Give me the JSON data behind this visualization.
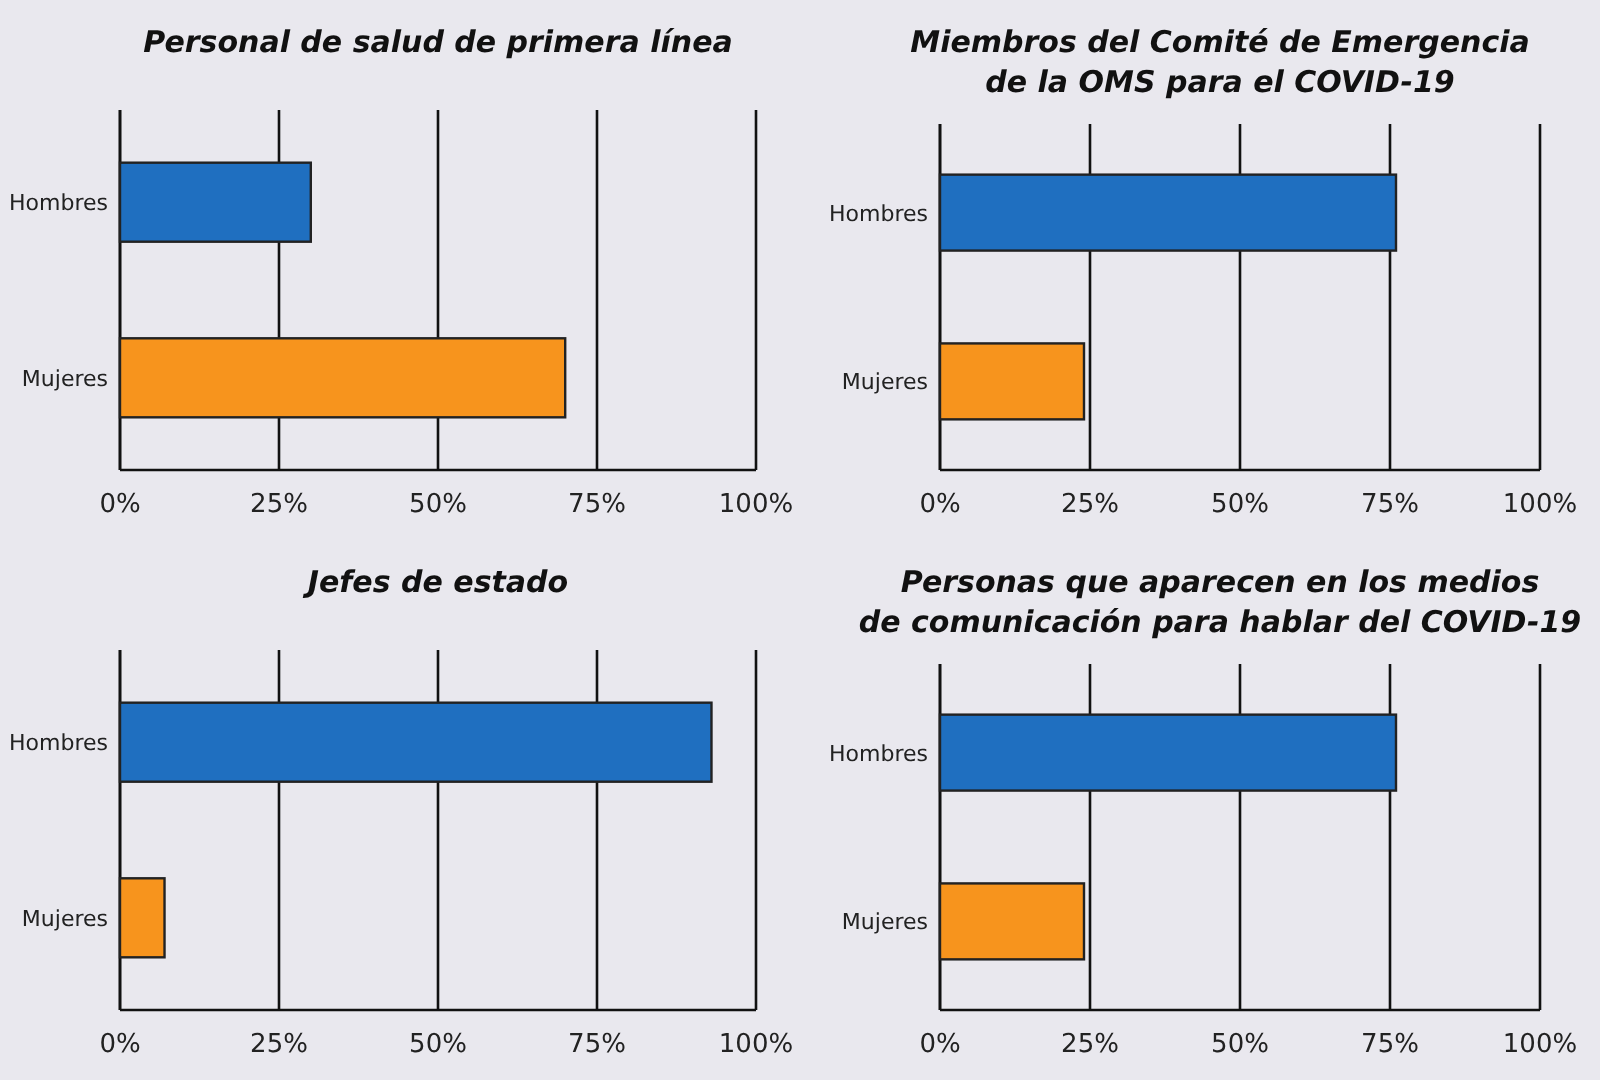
{
  "chart_data": [
    {
      "type": "bar",
      "orientation": "horizontal",
      "title": "Personal de salud de primera línea",
      "categories": [
        "Hombres",
        "Mujeres"
      ],
      "values": [
        30,
        70
      ],
      "colors": [
        "#1f6fc0",
        "#f7941d"
      ],
      "xlim": [
        0,
        100
      ],
      "xticks": [
        {
          "value": 0,
          "label": "0%"
        },
        {
          "value": 25,
          "label": "25%"
        },
        {
          "value": 50,
          "label": "50%"
        },
        {
          "value": 75,
          "label": "75%"
        },
        {
          "value": 100,
          "label": "100%"
        }
      ],
      "grid": "x"
    },
    {
      "type": "bar",
      "orientation": "horizontal",
      "title": "Miembros del Comité de Emergencia\nde la OMS para el COVID-19",
      "categories": [
        "Hombres",
        "Mujeres"
      ],
      "values": [
        76,
        24
      ],
      "colors": [
        "#1f6fc0",
        "#f7941d"
      ],
      "xlim": [
        0,
        100
      ],
      "xticks": [
        {
          "value": 0,
          "label": "0%"
        },
        {
          "value": 25,
          "label": "25%"
        },
        {
          "value": 50,
          "label": "50%"
        },
        {
          "value": 75,
          "label": "75%"
        },
        {
          "value": 100,
          "label": "100%"
        }
      ],
      "grid": "x"
    },
    {
      "type": "bar",
      "orientation": "horizontal",
      "title": "Jefes de estado",
      "categories": [
        "Hombres",
        "Mujeres"
      ],
      "values": [
        93,
        7
      ],
      "colors": [
        "#1f6fc0",
        "#f7941d"
      ],
      "xlim": [
        0,
        100
      ],
      "xticks": [
        {
          "value": 0,
          "label": "0%"
        },
        {
          "value": 25,
          "label": "25%"
        },
        {
          "value": 50,
          "label": "50%"
        },
        {
          "value": 75,
          "label": "75%"
        },
        {
          "value": 100,
          "label": "100%"
        }
      ],
      "grid": "x"
    },
    {
      "type": "bar",
      "orientation": "horizontal",
      "title": "Personas que aparecen en los medios\nde comunicación para hablar del COVID-19",
      "categories": [
        "Hombres",
        "Mujeres"
      ],
      "values": [
        76,
        24
      ],
      "colors": [
        "#1f6fc0",
        "#f7941d"
      ],
      "xlim": [
        0,
        100
      ],
      "xticks": [
        {
          "value": 0,
          "label": "0%"
        },
        {
          "value": 25,
          "label": "25%"
        },
        {
          "value": 50,
          "label": "50%"
        },
        {
          "value": 75,
          "label": "75%"
        },
        {
          "value": 100,
          "label": "100%"
        }
      ],
      "grid": "x"
    }
  ]
}
